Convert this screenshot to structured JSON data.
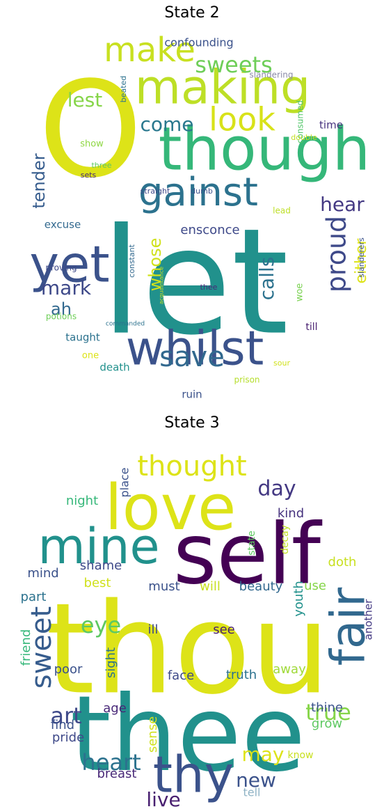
{
  "chart_data": [
    {
      "type": "wordcloud",
      "title": "State 2",
      "words": [
        {
          "text": "O",
          "color": "#dde318"
        },
        {
          "text": "let",
          "color": "#21918c"
        },
        {
          "text": "though",
          "color": "#35b779"
        },
        {
          "text": "making",
          "color": "#bddf26"
        },
        {
          "text": "whilst",
          "color": "#3b528b"
        },
        {
          "text": "yet",
          "color": "#3b528b"
        },
        {
          "text": "gainst",
          "color": "#2c728e"
        },
        {
          "text": "make",
          "color": "#c8e020"
        },
        {
          "text": "look",
          "color": "#d8e219"
        },
        {
          "text": "save",
          "color": "#31688e"
        },
        {
          "text": "sweets",
          "color": "#6ece58"
        },
        {
          "text": "proud",
          "color": "#3e4989"
        },
        {
          "text": "come",
          "color": "#2a788e"
        },
        {
          "text": "lest",
          "color": "#86d549"
        },
        {
          "text": "calls",
          "color": "#2c728e"
        },
        {
          "text": "mark",
          "color": "#3e4989"
        },
        {
          "text": "tender",
          "color": "#365c8d"
        },
        {
          "text": "hear",
          "color": "#443983"
        },
        {
          "text": "ah",
          "color": "#31688e"
        },
        {
          "text": "whose",
          "color": "#d0e11c"
        },
        {
          "text": "either",
          "color": "#dde318"
        },
        {
          "text": "ensconce",
          "color": "#3e4989"
        },
        {
          "text": "confounding",
          "color": "#3b528b"
        },
        {
          "text": "excuse",
          "color": "#31688e"
        },
        {
          "text": "taught",
          "color": "#2c728e"
        },
        {
          "text": "death",
          "color": "#21918c"
        },
        {
          "text": "ruin",
          "color": "#3b528b"
        },
        {
          "text": "time",
          "color": "#46327e"
        },
        {
          "text": "till",
          "color": "#481f70"
        },
        {
          "text": "slandering",
          "color": "#8b8ba8"
        },
        {
          "text": "consumed",
          "color": "#52c569"
        },
        {
          "text": "double",
          "color": "#c2df23"
        },
        {
          "text": "show",
          "color": "#8fd744"
        },
        {
          "text": "three",
          "color": "#5ec962"
        },
        {
          "text": "sets",
          "color": "#482878"
        },
        {
          "text": "straight",
          "color": "#3e4989"
        },
        {
          "text": "dumb",
          "color": "#3b528b"
        },
        {
          "text": "lead",
          "color": "#bddf26"
        },
        {
          "text": "constant",
          "color": "#31688e"
        },
        {
          "text": "proving",
          "color": "#3e4989"
        },
        {
          "text": "thee",
          "color": "#482878"
        },
        {
          "text": "woe",
          "color": "#7ad151"
        },
        {
          "text": "slanderers",
          "color": "#3b528b"
        },
        {
          "text": "potions",
          "color": "#6ece58"
        },
        {
          "text": "commanded",
          "color": "#2c728e"
        },
        {
          "text": "acquaintance",
          "color": "#c2df23"
        },
        {
          "text": "one",
          "color": "#dde318"
        },
        {
          "text": "prison",
          "color": "#b5de2b"
        },
        {
          "text": "sour",
          "color": "#d0e11c"
        },
        {
          "text": "beated",
          "color": "#2c728e"
        }
      ]
    },
    {
      "type": "wordcloud",
      "title": "State 3",
      "words": [
        {
          "text": "thou",
          "color": "#dde318"
        },
        {
          "text": "thee",
          "color": "#21918c"
        },
        {
          "text": "self",
          "color": "#440154"
        },
        {
          "text": "love",
          "color": "#dde318"
        },
        {
          "text": "mine",
          "color": "#21918c"
        },
        {
          "text": "thy",
          "color": "#3b528b"
        },
        {
          "text": "fair",
          "color": "#31688e"
        },
        {
          "text": "thought",
          "color": "#dde318"
        },
        {
          "text": "sweet",
          "color": "#365c8d"
        },
        {
          "text": "eye",
          "color": "#5ec962"
        },
        {
          "text": "art",
          "color": "#3e4989"
        },
        {
          "text": "true",
          "color": "#86d549"
        },
        {
          "text": "day",
          "color": "#443983"
        },
        {
          "text": "heart",
          "color": "#2c728e"
        },
        {
          "text": "may",
          "color": "#dde318"
        },
        {
          "text": "new",
          "color": "#3b528b"
        },
        {
          "text": "live",
          "color": "#481f70"
        },
        {
          "text": "night",
          "color": "#35b779"
        },
        {
          "text": "kind",
          "color": "#46327e"
        },
        {
          "text": "shame",
          "color": "#3e4989"
        },
        {
          "text": "mind",
          "color": "#3b528b"
        },
        {
          "text": "best",
          "color": "#d0e11c"
        },
        {
          "text": "must",
          "color": "#3b528b"
        },
        {
          "text": "will",
          "color": "#c8e020"
        },
        {
          "text": "beauty",
          "color": "#31688e"
        },
        {
          "text": "use",
          "color": "#86d549"
        },
        {
          "text": "doth",
          "color": "#c8e020"
        },
        {
          "text": "part",
          "color": "#2c728e"
        },
        {
          "text": "see",
          "color": "#481f70"
        },
        {
          "text": "ill",
          "color": "#3e4989"
        },
        {
          "text": "another",
          "color": "#443983"
        },
        {
          "text": "youth",
          "color": "#21918c"
        },
        {
          "text": "friend",
          "color": "#35b779"
        },
        {
          "text": "sight",
          "color": "#2c728e"
        },
        {
          "text": "poor",
          "color": "#3b528b"
        },
        {
          "text": "face",
          "color": "#3e4989"
        },
        {
          "text": "truth",
          "color": "#2c728e"
        },
        {
          "text": "away",
          "color": "#a0da39"
        },
        {
          "text": "thine",
          "color": "#3b528b"
        },
        {
          "text": "age",
          "color": "#482878"
        },
        {
          "text": "grow",
          "color": "#5ec962"
        },
        {
          "text": "find",
          "color": "#3b528b"
        },
        {
          "text": "pride",
          "color": "#3e4989"
        },
        {
          "text": "sense",
          "color": "#d0e11c"
        },
        {
          "text": "know",
          "color": "#c8e020"
        },
        {
          "text": "breast",
          "color": "#482878"
        },
        {
          "text": "tell",
          "color": "#8fb3c5"
        },
        {
          "text": "place",
          "color": "#3b528b"
        },
        {
          "text": "state",
          "color": "#5ec962"
        },
        {
          "text": "decay",
          "color": "#c2df23"
        }
      ]
    }
  ]
}
